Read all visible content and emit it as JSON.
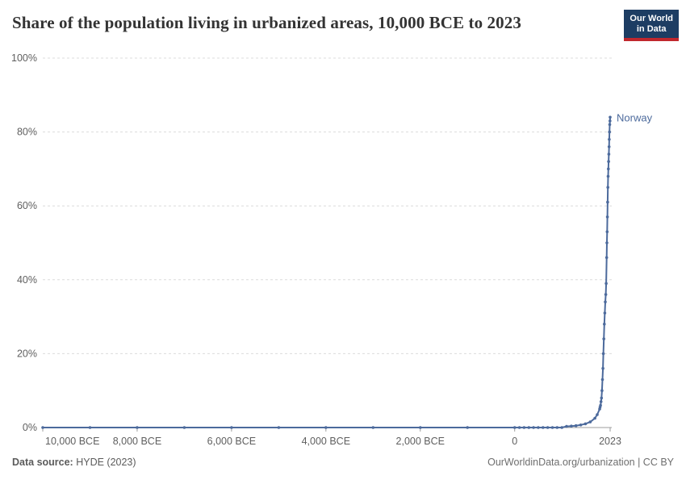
{
  "header": {
    "title": "Share of the population living in urbanized areas, 10,000 BCE to 2023",
    "logo": {
      "line1": "Our World",
      "line2": "in Data"
    }
  },
  "footer": {
    "source_label": "Data source:",
    "source_value": " HYDE (2023)",
    "attribution": "OurWorldinData.org/urbanization | CC BY"
  },
  "colors": {
    "series": "#4c6a9c",
    "grid": "#dcdcdc",
    "axis": "#9e9e9e",
    "tick_text": "#5f5f5f",
    "logo_bg": "#1d3d63",
    "logo_bar": "#c0272d"
  },
  "chart_data": {
    "type": "line",
    "title": "Share of the population living in urbanized areas, 10,000 BCE to 2023",
    "xlabel": "",
    "ylabel": "",
    "legend_position": "end-of-line",
    "grid": true,
    "x_axis": {
      "min": -10000,
      "max": 2023,
      "ticks": [
        {
          "value": -10000,
          "label": "10,000 BCE"
        },
        {
          "value": -8000,
          "label": "8,000 BCE"
        },
        {
          "value": -6000,
          "label": "6,000 BCE"
        },
        {
          "value": -4000,
          "label": "4,000 BCE"
        },
        {
          "value": -2000,
          "label": "2,000 BCE"
        },
        {
          "value": 0,
          "label": "0"
        },
        {
          "value": 2023,
          "label": "2023"
        }
      ]
    },
    "y_axis": {
      "min": 0,
      "max": 100,
      "ticks": [
        {
          "value": 0,
          "label": "0%"
        },
        {
          "value": 20,
          "label": "20%"
        },
        {
          "value": 40,
          "label": "40%"
        },
        {
          "value": 60,
          "label": "60%"
        },
        {
          "value": 80,
          "label": "80%"
        },
        {
          "value": 100,
          "label": "100%"
        }
      ]
    },
    "series": [
      {
        "name": "Norway",
        "color": "#4c6a9c",
        "points": [
          [
            -10000,
            0
          ],
          [
            -9000,
            0
          ],
          [
            -8000,
            0
          ],
          [
            -7000,
            0
          ],
          [
            -6000,
            0
          ],
          [
            -5000,
            0
          ],
          [
            -4000,
            0
          ],
          [
            -3000,
            0
          ],
          [
            -2000,
            0
          ],
          [
            -1000,
            0
          ],
          [
            0,
            0
          ],
          [
            100,
            0
          ],
          [
            200,
            0
          ],
          [
            300,
            0
          ],
          [
            400,
            0
          ],
          [
            500,
            0
          ],
          [
            600,
            0
          ],
          [
            700,
            0
          ],
          [
            800,
            0
          ],
          [
            900,
            0
          ],
          [
            1000,
            0
          ],
          [
            1100,
            0.3
          ],
          [
            1200,
            0.4
          ],
          [
            1300,
            0.5
          ],
          [
            1400,
            0.7
          ],
          [
            1500,
            1
          ],
          [
            1600,
            1.5
          ],
          [
            1700,
            2.5
          ],
          [
            1750,
            3.5
          ],
          [
            1800,
            5
          ],
          [
            1810,
            5.5
          ],
          [
            1820,
            6
          ],
          [
            1830,
            7
          ],
          [
            1840,
            8
          ],
          [
            1850,
            10
          ],
          [
            1860,
            13
          ],
          [
            1870,
            16
          ],
          [
            1880,
            20
          ],
          [
            1890,
            24
          ],
          [
            1900,
            28
          ],
          [
            1910,
            31
          ],
          [
            1920,
            34
          ],
          [
            1930,
            36
          ],
          [
            1940,
            39
          ],
          [
            1950,
            46
          ],
          [
            1955,
            50
          ],
          [
            1960,
            53
          ],
          [
            1965,
            57
          ],
          [
            1970,
            61
          ],
          [
            1975,
            65
          ],
          [
            1980,
            68
          ],
          [
            1985,
            70
          ],
          [
            1990,
            72
          ],
          [
            1995,
            74
          ],
          [
            2000,
            76
          ],
          [
            2005,
            78
          ],
          [
            2010,
            80
          ],
          [
            2015,
            82
          ],
          [
            2020,
            83
          ],
          [
            2023,
            84
          ]
        ]
      }
    ]
  }
}
